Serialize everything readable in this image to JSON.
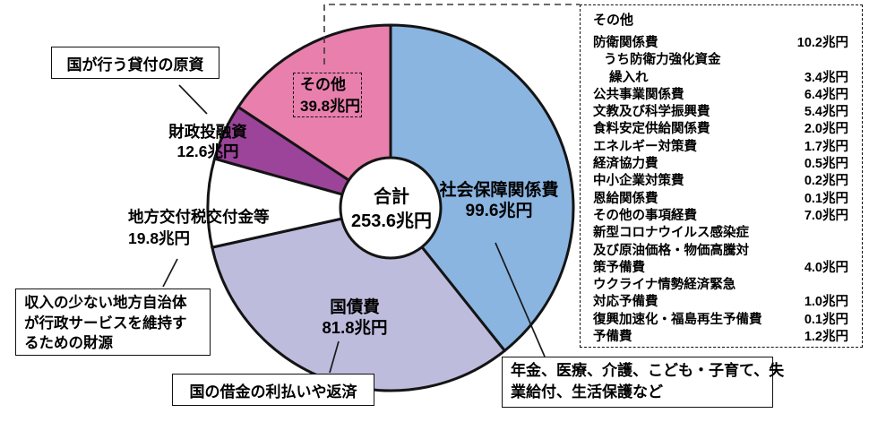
{
  "chart_data": {
    "type": "pie",
    "title": "",
    "center_label": "合計",
    "center_value": "253.6兆円",
    "total": 253.6,
    "unit": "兆円",
    "direction": "clockwise",
    "start_angle_deg": 0,
    "slices": [
      {
        "label": "社会保障関係費",
        "value": 99.6,
        "display": "99.6兆円",
        "color": "#8AB5E1"
      },
      {
        "label": "国債費",
        "value": 81.8,
        "display": "81.8兆円",
        "color": "#BEBCDD"
      },
      {
        "label": "地方交付税交付金等",
        "value": 19.8,
        "display": "19.8兆円",
        "color": "#FFFFFF"
      },
      {
        "label": "財政投融資",
        "value": 12.6,
        "display": "12.6兆円",
        "color": "#9B449A"
      },
      {
        "label": "その他",
        "value": 39.8,
        "display": "39.8兆円",
        "color": "#E87FAD"
      }
    ]
  },
  "callouts": {
    "loan_source": {
      "text": "国が行う貸付の原資"
    },
    "local_gov": {
      "lines": [
        "収入の少ない地方自治体",
        "が行政サービスを維持す",
        "るための財源"
      ]
    },
    "debt_service": {
      "text": "国の借金の利払いや返済"
    },
    "social_security": {
      "lines": [
        "年金、医療、介護、こども・子育て、失",
        "業給付、生活保護など"
      ]
    }
  },
  "legend": {
    "title": "その他",
    "rows": [
      {
        "label": "防衛関係費",
        "value": "10.2兆円",
        "indent": 0
      },
      {
        "label": "うち防衛力強化資金",
        "value": "",
        "indent": 1
      },
      {
        "label": "繰入れ",
        "value": "3.4兆円",
        "indent": 2
      },
      {
        "label": "公共事業関係費",
        "value": "6.4兆円",
        "indent": 0
      },
      {
        "label": "文教及び科学振興費",
        "value": "5.4兆円",
        "indent": 0
      },
      {
        "label": "食料安定供給関係費",
        "value": "2.0兆円",
        "indent": 0
      },
      {
        "label": "エネルギー対策費",
        "value": "1.7兆円",
        "indent": 0
      },
      {
        "label": "経済協力費",
        "value": "0.5兆円",
        "indent": 0
      },
      {
        "label": "中小企業対策費",
        "value": "0.2兆円",
        "indent": 0
      },
      {
        "label": "恩給関係費",
        "value": "0.1兆円",
        "indent": 0
      },
      {
        "label": "その他の事項経費",
        "value": "7.0兆円",
        "indent": 0
      },
      {
        "label": "新型コロナウイルス感染症",
        "value": "",
        "indent": 0
      },
      {
        "label": "及び原油価格・物価高騰対",
        "value": "",
        "indent": 0
      },
      {
        "label": "策予備費",
        "value": "4.0兆円",
        "indent": 0
      },
      {
        "label": "ウクライナ情勢経済緊急",
        "value": "",
        "indent": 0
      },
      {
        "label": "対応予備費",
        "value": "1.0兆円",
        "indent": 0
      },
      {
        "label": "復興加速化・福島再生予備費",
        "value": "0.1兆円",
        "indent": 0
      },
      {
        "label": "予備費",
        "value": "1.2兆円",
        "indent": 0
      }
    ]
  }
}
